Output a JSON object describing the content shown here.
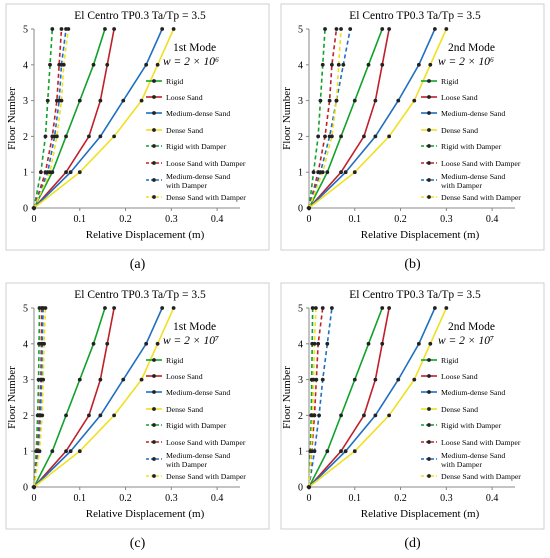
{
  "figure": {
    "panels": [
      {
        "key": "a",
        "label": "(a)",
        "mode_text": "1st Mode",
        "w_text": "w = 2 × 10⁶"
      },
      {
        "key": "b",
        "label": "(b)",
        "mode_text": "2nd Mode",
        "w_text": "w = 2 × 10⁶"
      },
      {
        "key": "c",
        "label": "(c)",
        "mode_text": "1st Mode",
        "w_text": "w = 2 × 10⁷"
      },
      {
        "key": "d",
        "label": "(d)",
        "mode_text": "2nd Mode",
        "w_text": "w = 2 × 10⁷"
      }
    ]
  },
  "chart_data": [
    {
      "type": "line",
      "title": "El Centro TP0.3   Ta/Tp = 3.5",
      "xlabel": "Relative Displacement (m)",
      "ylabel": "Floor Number",
      "xlim": [
        0,
        0.45
      ],
      "ylim": [
        0,
        5
      ],
      "xticks": [
        "0",
        "0.1",
        "0.2",
        "0.3",
        "0.4"
      ],
      "yticks": [
        "0",
        "1",
        "2",
        "3",
        "4",
        "5"
      ],
      "grid": false,
      "legend": "right",
      "y": [
        0,
        1,
        2,
        3,
        4,
        5
      ],
      "series": [
        {
          "name": "Rigid",
          "color": "#12a12a",
          "dashed": false,
          "values": [
            0,
            0.04,
            0.07,
            0.1,
            0.13,
            0.155
          ]
        },
        {
          "name": "Loose Sand",
          "color": "#c0202a",
          "dashed": false,
          "values": [
            0,
            0.07,
            0.12,
            0.145,
            0.16,
            0.175
          ]
        },
        {
          "name": "Medium-dense Sand",
          "color": "#1f6fc0",
          "dashed": false,
          "values": [
            0,
            0.08,
            0.145,
            0.195,
            0.245,
            0.28
          ]
        },
        {
          "name": "Dense Sand",
          "color": "#f0e020",
          "dashed": false,
          "values": [
            0,
            0.1,
            0.175,
            0.235,
            0.27,
            0.305
          ]
        },
        {
          "name": "Rigid with Damper",
          "color": "#12a12a",
          "dashed": true,
          "values": [
            0,
            0.015,
            0.025,
            0.03,
            0.035,
            0.04
          ]
        },
        {
          "name": "Loose Sand with Damper",
          "color": "#c0202a",
          "dashed": true,
          "values": [
            0,
            0.025,
            0.04,
            0.05,
            0.055,
            0.06
          ]
        },
        {
          "name": "Medium-dense Sand with Damper",
          "color": "#1f6fc0",
          "dashed": true,
          "values": [
            0,
            0.03,
            0.045,
            0.055,
            0.06,
            0.07
          ]
        },
        {
          "name": "Dense Sand with Damper",
          "color": "#f0e020",
          "dashed": true,
          "values": [
            0,
            0.035,
            0.05,
            0.06,
            0.065,
            0.075
          ]
        }
      ]
    },
    {
      "type": "line",
      "title": "El Centro TP0.3   Ta/Tp = 3.5",
      "xlabel": "Relative Displacement (m)",
      "ylabel": "Floor Number",
      "xlim": [
        0,
        0.45
      ],
      "ylim": [
        0,
        5
      ],
      "xticks": [
        "0",
        "0.1",
        "0.2",
        "0.3",
        "0.4"
      ],
      "yticks": [
        "0",
        "1",
        "2",
        "3",
        "4",
        "5"
      ],
      "grid": false,
      "legend": "right",
      "y": [
        0,
        1,
        2,
        3,
        4,
        5
      ],
      "series": [
        {
          "name": "Rigid",
          "color": "#12a12a",
          "dashed": false,
          "values": [
            0,
            0.04,
            0.07,
            0.1,
            0.13,
            0.16
          ]
        },
        {
          "name": "Loose Sand",
          "color": "#c0202a",
          "dashed": false,
          "values": [
            0,
            0.07,
            0.12,
            0.145,
            0.16,
            0.175
          ]
        },
        {
          "name": "Medium-dense Sand",
          "color": "#1f6fc0",
          "dashed": false,
          "values": [
            0,
            0.08,
            0.145,
            0.195,
            0.24,
            0.275
          ]
        },
        {
          "name": "Dense Sand",
          "color": "#f0e020",
          "dashed": false,
          "values": [
            0,
            0.1,
            0.175,
            0.23,
            0.265,
            0.3
          ]
        },
        {
          "name": "Rigid with Damper",
          "color": "#12a12a",
          "dashed": true,
          "values": [
            0,
            0.01,
            0.02,
            0.025,
            0.03,
            0.035
          ]
        },
        {
          "name": "Loose Sand with Damper",
          "color": "#c0202a",
          "dashed": true,
          "values": [
            0,
            0.02,
            0.035,
            0.045,
            0.05,
            0.06
          ]
        },
        {
          "name": "Medium-dense Sand with Damper",
          "color": "#1f6fc0",
          "dashed": true,
          "values": [
            0,
            0.025,
            0.045,
            0.06,
            0.075,
            0.09
          ]
        },
        {
          "name": "Dense Sand with Damper",
          "color": "#f0e020",
          "dashed": true,
          "values": [
            0,
            0.03,
            0.05,
            0.06,
            0.065,
            0.07
          ]
        }
      ]
    },
    {
      "type": "line",
      "title": "El Centro TP0.3   Ta/Tp = 3.5",
      "xlabel": "Relative Displacement (m)",
      "ylabel": "Floor Number",
      "xlim": [
        0,
        0.45
      ],
      "ylim": [
        0,
        5
      ],
      "xticks": [
        "0",
        "0.1",
        "0.2",
        "0.3",
        "0.4"
      ],
      "yticks": [
        "0",
        "1",
        "2",
        "3",
        "4",
        "5"
      ],
      "grid": false,
      "legend": "right",
      "y": [
        0,
        1,
        2,
        3,
        4,
        5
      ],
      "series": [
        {
          "name": "Rigid",
          "color": "#12a12a",
          "dashed": false,
          "values": [
            0,
            0.04,
            0.07,
            0.1,
            0.13,
            0.155
          ]
        },
        {
          "name": "Loose Sand",
          "color": "#c0202a",
          "dashed": false,
          "values": [
            0,
            0.07,
            0.12,
            0.145,
            0.16,
            0.175
          ]
        },
        {
          "name": "Medium-dense Sand",
          "color": "#1f6fc0",
          "dashed": false,
          "values": [
            0,
            0.08,
            0.145,
            0.195,
            0.245,
            0.28
          ]
        },
        {
          "name": "Dense Sand",
          "color": "#f0e020",
          "dashed": false,
          "values": [
            0,
            0.1,
            0.175,
            0.235,
            0.27,
            0.305
          ]
        },
        {
          "name": "Rigid with Damper",
          "color": "#12a12a",
          "dashed": true,
          "values": [
            0,
            0.005,
            0.008,
            0.01,
            0.011,
            0.012
          ]
        },
        {
          "name": "Loose Sand with Damper",
          "color": "#c0202a",
          "dashed": true,
          "values": [
            0,
            0.008,
            0.012,
            0.015,
            0.016,
            0.017
          ]
        },
        {
          "name": "Medium-dense Sand with Damper",
          "color": "#1f6fc0",
          "dashed": true,
          "values": [
            0,
            0.01,
            0.014,
            0.017,
            0.018,
            0.02
          ]
        },
        {
          "name": "Dense Sand with Damper",
          "color": "#f0e020",
          "dashed": true,
          "values": [
            0,
            0.012,
            0.018,
            0.02,
            0.022,
            0.025
          ]
        }
      ]
    },
    {
      "type": "line",
      "title": "El Centro TP0.3   Ta/Tp = 3.5",
      "xlabel": "Relative Displacement (m)",
      "ylabel": "Floor Number",
      "xlim": [
        0,
        0.45
      ],
      "ylim": [
        0,
        5
      ],
      "xticks": [
        "0",
        "0.1",
        "0.2",
        "0.3",
        "0.4"
      ],
      "yticks": [
        "0",
        "1",
        "2",
        "3",
        "4",
        "5"
      ],
      "grid": false,
      "legend": "right",
      "y": [
        0,
        1,
        2,
        3,
        4,
        5
      ],
      "series": [
        {
          "name": "Rigid",
          "color": "#12a12a",
          "dashed": false,
          "values": [
            0,
            0.04,
            0.07,
            0.1,
            0.13,
            0.16
          ]
        },
        {
          "name": "Loose Sand",
          "color": "#c0202a",
          "dashed": false,
          "values": [
            0,
            0.07,
            0.12,
            0.145,
            0.16,
            0.175
          ]
        },
        {
          "name": "Medium-dense Sand",
          "color": "#1f6fc0",
          "dashed": false,
          "values": [
            0,
            0.08,
            0.145,
            0.195,
            0.24,
            0.275
          ]
        },
        {
          "name": "Dense Sand",
          "color": "#f0e020",
          "dashed": false,
          "values": [
            0,
            0.1,
            0.175,
            0.23,
            0.265,
            0.3
          ]
        },
        {
          "name": "Rigid with Damper",
          "color": "#12a12a",
          "dashed": true,
          "values": [
            0,
            0.003,
            0.005,
            0.006,
            0.007,
            0.008
          ]
        },
        {
          "name": "Loose Sand with Damper",
          "color": "#c0202a",
          "dashed": true,
          "values": [
            0,
            0.006,
            0.012,
            0.016,
            0.02,
            0.03
          ]
        },
        {
          "name": "Medium-dense Sand with Damper",
          "color": "#1f6fc0",
          "dashed": true,
          "values": [
            0,
            0.012,
            0.022,
            0.03,
            0.04,
            0.05
          ]
        },
        {
          "name": "Dense Sand with Damper",
          "color": "#f0e020",
          "dashed": true,
          "values": [
            0,
            0.005,
            0.008,
            0.01,
            0.012,
            0.015
          ]
        }
      ]
    }
  ]
}
